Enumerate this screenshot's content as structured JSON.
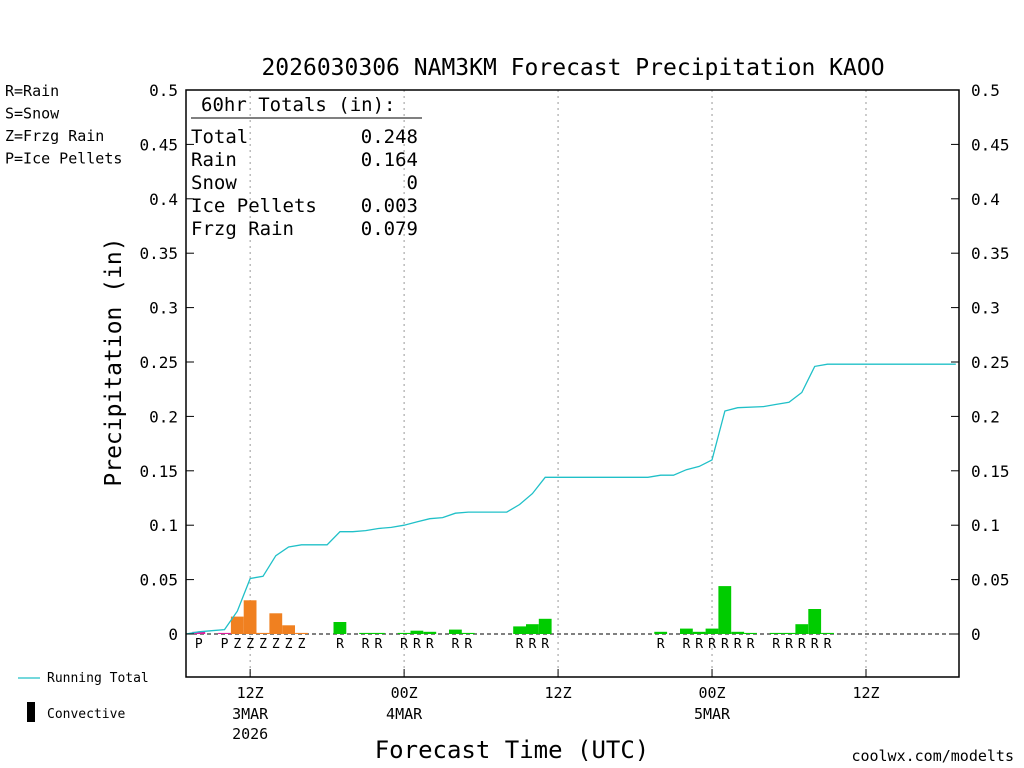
{
  "chart_data": {
    "type": "bar",
    "title": "2026030306 NAM3KM Forecast Precipitation KAOO",
    "xlabel": "Forecast Time (UTC)",
    "ylabel": "Precipitation (in)",
    "ylim": [
      -0.04,
      0.5
    ],
    "yticks": [
      "0.5",
      "0.45",
      "0.4",
      "0.35",
      "0.3",
      "0.25",
      "0.2",
      "0.15",
      "0.1",
      "0.05",
      "0"
    ],
    "ytick_values": [
      0.5,
      0.45,
      0.4,
      0.35,
      0.3,
      0.25,
      0.2,
      0.15,
      0.1,
      0.05,
      0
    ],
    "xlim_hours": [
      1,
      61
    ],
    "x_ticks": [
      {
        "hour": 6,
        "label": "12Z",
        "sub1": "3MAR",
        "sub2": "2026"
      },
      {
        "hour": 18,
        "label": "00Z",
        "sub1": "4MAR",
        "sub2": ""
      },
      {
        "hour": 30,
        "label": "12Z",
        "sub1": "",
        "sub2": ""
      },
      {
        "hour": 42,
        "label": "00Z",
        "sub1": "5MAR",
        "sub2": ""
      },
      {
        "hour": 54,
        "label": "12Z",
        "sub1": "",
        "sub2": ""
      }
    ],
    "ptype_colors": {
      "R": "#00cc00",
      "S": "#3333ff",
      "Z": "#f08020",
      "P": "#e0209e"
    },
    "bars": [
      {
        "hour": 2,
        "type": "P",
        "value": 0.002
      },
      {
        "hour": 4,
        "type": "P",
        "value": 0.001
      },
      {
        "hour": 5,
        "type": "Z",
        "value": 0.016
      },
      {
        "hour": 6,
        "type": "Z",
        "value": 0.031
      },
      {
        "hour": 7,
        "type": "Z",
        "value": 0.001
      },
      {
        "hour": 8,
        "type": "Z",
        "value": 0.019
      },
      {
        "hour": 9,
        "type": "Z",
        "value": 0.008
      },
      {
        "hour": 10,
        "type": "Z",
        "value": 0.001
      },
      {
        "hour": 13,
        "type": "R",
        "value": 0.011
      },
      {
        "hour": 15,
        "type": "R",
        "value": 0.001
      },
      {
        "hour": 16,
        "type": "R",
        "value": 0.001
      },
      {
        "hour": 18,
        "type": "R",
        "value": 0.001
      },
      {
        "hour": 19,
        "type": "R",
        "value": 0.003
      },
      {
        "hour": 20,
        "type": "R",
        "value": 0.002
      },
      {
        "hour": 22,
        "type": "R",
        "value": 0.004
      },
      {
        "hour": 23,
        "type": "R",
        "value": 0.001
      },
      {
        "hour": 27,
        "type": "R",
        "value": 0.007
      },
      {
        "hour": 28,
        "type": "R",
        "value": 0.009
      },
      {
        "hour": 29,
        "type": "R",
        "value": 0.014
      },
      {
        "hour": 38,
        "type": "R",
        "value": 0.002
      },
      {
        "hour": 40,
        "type": "R",
        "value": 0.005
      },
      {
        "hour": 41,
        "type": "R",
        "value": 0.002
      },
      {
        "hour": 42,
        "type": "R",
        "value": 0.005
      },
      {
        "hour": 43,
        "type": "R",
        "value": 0.044
      },
      {
        "hour": 44,
        "type": "R",
        "value": 0.002
      },
      {
        "hour": 45,
        "type": "R",
        "value": 0.001
      },
      {
        "hour": 47,
        "type": "R",
        "value": 0.001
      },
      {
        "hour": 48,
        "type": "R",
        "value": 0.001
      },
      {
        "hour": 49,
        "type": "R",
        "value": 0.009
      },
      {
        "hour": 50,
        "type": "R",
        "value": 0.023
      },
      {
        "hour": 51,
        "type": "R",
        "value": 0.001
      }
    ],
    "ptype_labels": [
      {
        "hour": 2,
        "type": "P"
      },
      {
        "hour": 4,
        "type": "P"
      },
      {
        "hour": 5,
        "type": "Z"
      },
      {
        "hour": 6,
        "type": "Z"
      },
      {
        "hour": 7,
        "type": "Z"
      },
      {
        "hour": 8,
        "type": "Z"
      },
      {
        "hour": 9,
        "type": "Z"
      },
      {
        "hour": 10,
        "type": "Z"
      },
      {
        "hour": 13,
        "type": "R"
      },
      {
        "hour": 15,
        "type": "R"
      },
      {
        "hour": 16,
        "type": "R"
      },
      {
        "hour": 18,
        "type": "R"
      },
      {
        "hour": 19,
        "type": "R"
      },
      {
        "hour": 20,
        "type": "R"
      },
      {
        "hour": 22,
        "type": "R"
      },
      {
        "hour": 23,
        "type": "R"
      },
      {
        "hour": 27,
        "type": "R"
      },
      {
        "hour": 28,
        "type": "R"
      },
      {
        "hour": 29,
        "type": "R"
      },
      {
        "hour": 38,
        "type": "R"
      },
      {
        "hour": 40,
        "type": "R"
      },
      {
        "hour": 41,
        "type": "R"
      },
      {
        "hour": 42,
        "type": "R"
      },
      {
        "hour": 43,
        "type": "R"
      },
      {
        "hour": 44,
        "type": "R"
      },
      {
        "hour": 45,
        "type": "R"
      },
      {
        "hour": 47,
        "type": "R"
      },
      {
        "hour": 48,
        "type": "R"
      },
      {
        "hour": 49,
        "type": "R"
      },
      {
        "hour": 50,
        "type": "R"
      },
      {
        "hour": 51,
        "type": "R"
      }
    ],
    "running_total": [
      {
        "hour": 1,
        "value": 0.0
      },
      {
        "hour": 2,
        "value": 0.002
      },
      {
        "hour": 3,
        "value": 0.003
      },
      {
        "hour": 4,
        "value": 0.004
      },
      {
        "hour": 5,
        "value": 0.021
      },
      {
        "hour": 6,
        "value": 0.051
      },
      {
        "hour": 7,
        "value": 0.053
      },
      {
        "hour": 8,
        "value": 0.072
      },
      {
        "hour": 9,
        "value": 0.08
      },
      {
        "hour": 10,
        "value": 0.082
      },
      {
        "hour": 12,
        "value": 0.082
      },
      {
        "hour": 13,
        "value": 0.094
      },
      {
        "hour": 14,
        "value": 0.094
      },
      {
        "hour": 15,
        "value": 0.095
      },
      {
        "hour": 16,
        "value": 0.097
      },
      {
        "hour": 17,
        "value": 0.098
      },
      {
        "hour": 18,
        "value": 0.1
      },
      {
        "hour": 19,
        "value": 0.103
      },
      {
        "hour": 20,
        "value": 0.106
      },
      {
        "hour": 21,
        "value": 0.107
      },
      {
        "hour": 22,
        "value": 0.111
      },
      {
        "hour": 23,
        "value": 0.112
      },
      {
        "hour": 26,
        "value": 0.112
      },
      {
        "hour": 27,
        "value": 0.119
      },
      {
        "hour": 28,
        "value": 0.129
      },
      {
        "hour": 29,
        "value": 0.144
      },
      {
        "hour": 37,
        "value": 0.144
      },
      {
        "hour": 38,
        "value": 0.146
      },
      {
        "hour": 39,
        "value": 0.146
      },
      {
        "hour": 40,
        "value": 0.151
      },
      {
        "hour": 41,
        "value": 0.154
      },
      {
        "hour": 42,
        "value": 0.16
      },
      {
        "hour": 43,
        "value": 0.205
      },
      {
        "hour": 44,
        "value": 0.208
      },
      {
        "hour": 46,
        "value": 0.209
      },
      {
        "hour": 47,
        "value": 0.211
      },
      {
        "hour": 48,
        "value": 0.213
      },
      {
        "hour": 49,
        "value": 0.222
      },
      {
        "hour": 50,
        "value": 0.246
      },
      {
        "hour": 51,
        "value": 0.248
      },
      {
        "hour": 61,
        "value": 0.248
      }
    ],
    "running_total_color": "#20c0c8",
    "totals_box": {
      "heading": "60hr Totals (in):",
      "rows": [
        {
          "label": "Total",
          "value": "0.248"
        },
        {
          "label": "Rain",
          "value": "0.164"
        },
        {
          "label": "Snow",
          "value": "0"
        },
        {
          "label": "Ice Pellets",
          "value": "0.003"
        },
        {
          "label": "Frzg Rain",
          "value": "0.079"
        }
      ]
    },
    "legend_ptypes": [
      {
        "text": "R=Rain",
        "color": "#00cc00"
      },
      {
        "text": "S=Snow",
        "color": "#3333ff"
      },
      {
        "text": "Z=Frzg Rain",
        "color": "#f08020"
      },
      {
        "text": "P=Ice Pellets",
        "color": "#e0209e"
      }
    ],
    "legend_lines": {
      "running_total": "Running Total",
      "convective": "Convective"
    },
    "credit": "coolwx.com/modelts",
    "credit_color": "#e02020"
  }
}
